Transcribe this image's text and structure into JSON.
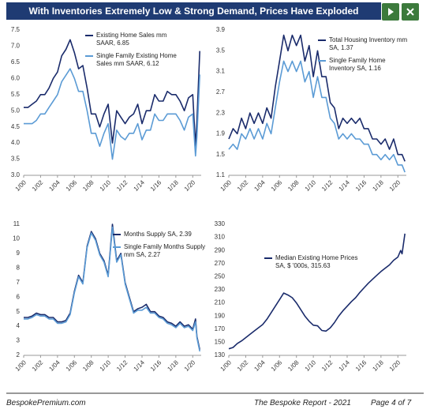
{
  "header": {
    "title": "With Inventories Extremely Low & Strong Demand, Prices Have Exploded"
  },
  "footer": {
    "site": "BespokePremium.com",
    "report": "The Bespoke Report - 2021",
    "page": "Page 4 of 7"
  },
  "chart_data": [
    {
      "type": "line",
      "legend": "upper left",
      "x": [
        2000,
        2000.5,
        2001,
        2001.5,
        2002,
        2002.5,
        2003,
        2003.5,
        2004,
        2004.5,
        2005,
        2005.5,
        2006,
        2006.5,
        2007,
        2007.5,
        2008,
        2008.5,
        2009,
        2009.5,
        2010,
        2010.5,
        2011,
        2011.5,
        2012,
        2012.5,
        2013,
        2013.5,
        2014,
        2014.5,
        2015,
        2015.5,
        2016,
        2016.5,
        2017,
        2017.5,
        2018,
        2018.5,
        2019,
        2019.5,
        2020,
        2020.33,
        2020.5,
        2020.83
      ],
      "xlim": [
        2000,
        2021
      ],
      "xticks": [
        {
          "value": 2000,
          "label": "1/00"
        },
        {
          "value": 2002,
          "label": "1/02"
        },
        {
          "value": 2004,
          "label": "1/04"
        },
        {
          "value": 2006,
          "label": "1/06"
        },
        {
          "value": 2008,
          "label": "1/08"
        },
        {
          "value": 2010,
          "label": "1/10"
        },
        {
          "value": 2012,
          "label": "1/12"
        },
        {
          "value": 2014,
          "label": "1/14"
        },
        {
          "value": 2016,
          "label": "1/16"
        },
        {
          "value": 2018,
          "label": "1/18"
        },
        {
          "value": 2020,
          "label": "1/20"
        }
      ],
      "ylim": [
        3,
        7.5
      ],
      "yticks": [
        {
          "value": 3,
          "label": "3.0"
        },
        3.5,
        {
          "value": 4,
          "label": "4.0"
        },
        4.5,
        {
          "value": 5,
          "label": "5.0"
        },
        5.5,
        {
          "value": 6,
          "label": "6.0"
        },
        6.5,
        {
          "value": 7,
          "label": "7.0"
        },
        7.5
      ],
      "series": [
        {
          "name": "Existing Home Sales mm SAAR, 6.85",
          "color": "#1a2b6b",
          "values": [
            5.1,
            5.1,
            5.2,
            5.3,
            5.5,
            5.5,
            5.7,
            6.0,
            6.2,
            6.7,
            6.9,
            7.2,
            6.8,
            6.3,
            6.4,
            5.7,
            4.9,
            4.9,
            4.5,
            4.9,
            5.2,
            4.0,
            5.0,
            4.8,
            4.6,
            4.8,
            4.9,
            5.2,
            4.6,
            5.0,
            5.0,
            5.5,
            5.3,
            5.3,
            5.6,
            5.5,
            5.5,
            5.3,
            5.0,
            5.4,
            5.5,
            3.9,
            4.7,
            6.85
          ]
        },
        {
          "name": "Single Family Existing Home Sales mm SAAR, 6.12",
          "color": "#5b9bd5",
          "values": [
            4.6,
            4.6,
            4.6,
            4.7,
            4.9,
            4.9,
            5.1,
            5.3,
            5.5,
            5.9,
            6.1,
            6.3,
            6.0,
            5.6,
            5.6,
            5.0,
            4.3,
            4.3,
            3.9,
            4.3,
            4.6,
            3.5,
            4.4,
            4.2,
            4.1,
            4.3,
            4.3,
            4.6,
            4.1,
            4.4,
            4.4,
            4.9,
            4.7,
            4.7,
            4.9,
            4.9,
            4.9,
            4.7,
            4.4,
            4.8,
            4.9,
            3.6,
            4.2,
            6.12
          ]
        }
      ]
    },
    {
      "type": "line",
      "legend": "upper right",
      "x": [
        2000,
        2000.5,
        2001,
        2001.5,
        2002,
        2002.5,
        2003,
        2003.5,
        2004,
        2004.5,
        2005,
        2005.5,
        2006,
        2006.5,
        2007,
        2007.5,
        2008,
        2008.5,
        2009,
        2009.5,
        2010,
        2010.5,
        2011,
        2011.5,
        2012,
        2012.5,
        2013,
        2013.5,
        2014,
        2014.5,
        2015,
        2015.5,
        2016,
        2016.5,
        2017,
        2017.5,
        2018,
        2018.5,
        2019,
        2019.5,
        2020,
        2020.33,
        2020.5,
        2020.83
      ],
      "xlim": [
        2000,
        2021
      ],
      "xticks": [
        {
          "value": 2000,
          "label": "1/00"
        },
        {
          "value": 2002,
          "label": "1/02"
        },
        {
          "value": 2004,
          "label": "1/04"
        },
        {
          "value": 2006,
          "label": "1/06"
        },
        {
          "value": 2008,
          "label": "1/08"
        },
        {
          "value": 2010,
          "label": "1/10"
        },
        {
          "value": 2012,
          "label": "1/12"
        },
        {
          "value": 2014,
          "label": "1/14"
        },
        {
          "value": 2016,
          "label": "1/16"
        },
        {
          "value": 2018,
          "label": "1/18"
        },
        {
          "value": 2020,
          "label": "1/20"
        }
      ],
      "ylim": [
        1.1,
        3.9
      ],
      "yticks": [
        1.1,
        1.5,
        1.9,
        2.3,
        2.7,
        3.1,
        3.5,
        3.9
      ],
      "series": [
        {
          "name": "Total Housing Inventory mm SA, 1.37",
          "color": "#1a2b6b",
          "values": [
            1.8,
            2.0,
            1.9,
            2.2,
            2.0,
            2.3,
            2.1,
            2.3,
            2.1,
            2.4,
            2.2,
            2.8,
            3.3,
            3.8,
            3.5,
            3.8,
            3.6,
            3.8,
            3.3,
            3.6,
            3.0,
            3.5,
            3.0,
            3.0,
            2.5,
            2.4,
            2.0,
            2.2,
            2.1,
            2.2,
            2.1,
            2.2,
            2.0,
            2.0,
            1.8,
            1.8,
            1.7,
            1.8,
            1.6,
            1.8,
            1.5,
            1.5,
            1.5,
            1.37
          ]
        },
        {
          "name": "Single Family Home Inventory SA, 1.16",
          "color": "#5b9bd5",
          "values": [
            1.6,
            1.7,
            1.6,
            1.9,
            1.8,
            2.0,
            1.8,
            2.0,
            1.8,
            2.1,
            1.9,
            2.4,
            2.9,
            3.3,
            3.1,
            3.3,
            3.1,
            3.3,
            2.9,
            3.1,
            2.6,
            3.0,
            2.6,
            2.6,
            2.2,
            2.1,
            1.8,
            1.9,
            1.8,
            1.9,
            1.8,
            1.8,
            1.7,
            1.7,
            1.5,
            1.5,
            1.4,
            1.5,
            1.4,
            1.5,
            1.3,
            1.3,
            1.3,
            1.16
          ]
        }
      ]
    },
    {
      "type": "line",
      "legend": "upper right",
      "x": [
        2000,
        2000.5,
        2001,
        2001.5,
        2002,
        2002.5,
        2003,
        2003.5,
        2004,
        2004.5,
        2005,
        2005.5,
        2006,
        2006.5,
        2007,
        2007.5,
        2008,
        2008.5,
        2009,
        2009.5,
        2010,
        2010.5,
        2011,
        2011.5,
        2012,
        2012.5,
        2013,
        2013.5,
        2014,
        2014.5,
        2015,
        2015.5,
        2016,
        2016.5,
        2017,
        2017.5,
        2018,
        2018.5,
        2019,
        2019.5,
        2020,
        2020.33,
        2020.5,
        2020.83
      ],
      "xlim": [
        2000,
        2021
      ],
      "xticks": [
        {
          "value": 2000,
          "label": "1/00"
        },
        {
          "value": 2002,
          "label": "1/02"
        },
        {
          "value": 2004,
          "label": "1/04"
        },
        {
          "value": 2006,
          "label": "1/06"
        },
        {
          "value": 2008,
          "label": "1/08"
        },
        {
          "value": 2010,
          "label": "1/10"
        },
        {
          "value": 2012,
          "label": "1/12"
        },
        {
          "value": 2014,
          "label": "1/14"
        },
        {
          "value": 2016,
          "label": "1/16"
        },
        {
          "value": 2018,
          "label": "1/18"
        },
        {
          "value": 2020,
          "label": "1/20"
        }
      ],
      "ylim": [
        2,
        11
      ],
      "yticks": [
        2,
        3,
        4,
        5,
        6,
        7,
        8,
        9,
        10,
        11
      ],
      "series": [
        {
          "name": "Months Supply SA, 2.39",
          "color": "#1a2b6b",
          "values": [
            4.6,
            4.6,
            4.7,
            4.9,
            4.8,
            4.8,
            4.6,
            4.6,
            4.3,
            4.3,
            4.4,
            4.9,
            6.4,
            7.5,
            7.0,
            9.5,
            10.5,
            10.0,
            9.0,
            8.5,
            7.5,
            11.0,
            8.5,
            9.0,
            7.0,
            6.0,
            5.0,
            5.2,
            5.3,
            5.5,
            5.0,
            5.0,
            4.7,
            4.6,
            4.3,
            4.2,
            4.0,
            4.3,
            4.0,
            4.1,
            3.8,
            4.5,
            3.3,
            2.39
          ]
        },
        {
          "name": "Single Family Months Supply mm SA, 2.27",
          "color": "#5b9bd5",
          "values": [
            4.5,
            4.5,
            4.6,
            4.8,
            4.7,
            4.7,
            4.5,
            4.5,
            4.2,
            4.2,
            4.3,
            4.8,
            6.3,
            7.4,
            6.9,
            9.4,
            10.4,
            9.9,
            8.9,
            8.4,
            7.4,
            10.8,
            8.4,
            8.9,
            6.9,
            5.9,
            4.9,
            5.1,
            5.1,
            5.3,
            4.9,
            4.9,
            4.6,
            4.5,
            4.2,
            4.1,
            3.9,
            4.2,
            3.9,
            4.0,
            3.7,
            4.3,
            3.2,
            2.27
          ]
        }
      ]
    },
    {
      "type": "line",
      "legend": "upper center",
      "x": [
        2000,
        2000.5,
        2001,
        2001.5,
        2002,
        2002.5,
        2003,
        2003.5,
        2004,
        2004.5,
        2005,
        2005.5,
        2006,
        2006.5,
        2007,
        2007.5,
        2008,
        2008.5,
        2009,
        2009.5,
        2010,
        2010.5,
        2011,
        2011.5,
        2012,
        2012.5,
        2013,
        2013.5,
        2014,
        2014.5,
        2015,
        2015.5,
        2016,
        2016.5,
        2017,
        2017.5,
        2018,
        2018.5,
        2019,
        2019.5,
        2020,
        2020.33,
        2020.5,
        2020.83
      ],
      "xlim": [
        2000,
        2021
      ],
      "xticks": [
        {
          "value": 2000,
          "label": "1/00"
        },
        {
          "value": 2002,
          "label": "1/02"
        },
        {
          "value": 2004,
          "label": "1/04"
        },
        {
          "value": 2006,
          "label": "1/06"
        },
        {
          "value": 2008,
          "label": "1/08"
        },
        {
          "value": 2010,
          "label": "1/10"
        },
        {
          "value": 2012,
          "label": "1/12"
        },
        {
          "value": 2014,
          "label": "1/14"
        },
        {
          "value": 2016,
          "label": "1/16"
        },
        {
          "value": 2018,
          "label": "1/18"
        },
        {
          "value": 2020,
          "label": "1/20"
        }
      ],
      "ylim": [
        130,
        330
      ],
      "yticks": [
        130,
        150,
        170,
        190,
        210,
        230,
        250,
        270,
        290,
        310,
        330
      ],
      "series": [
        {
          "name": "Median Existing Home Prices SA, $ '000s, 315.63",
          "color": "#1a2b6b",
          "values": [
            140,
            142,
            148,
            152,
            157,
            162,
            167,
            172,
            177,
            185,
            195,
            205,
            215,
            225,
            222,
            218,
            210,
            200,
            190,
            182,
            176,
            175,
            168,
            167,
            172,
            180,
            190,
            198,
            205,
            212,
            218,
            226,
            233,
            240,
            246,
            252,
            258,
            263,
            268,
            275,
            280,
            290,
            285,
            315.63
          ]
        }
      ]
    }
  ]
}
